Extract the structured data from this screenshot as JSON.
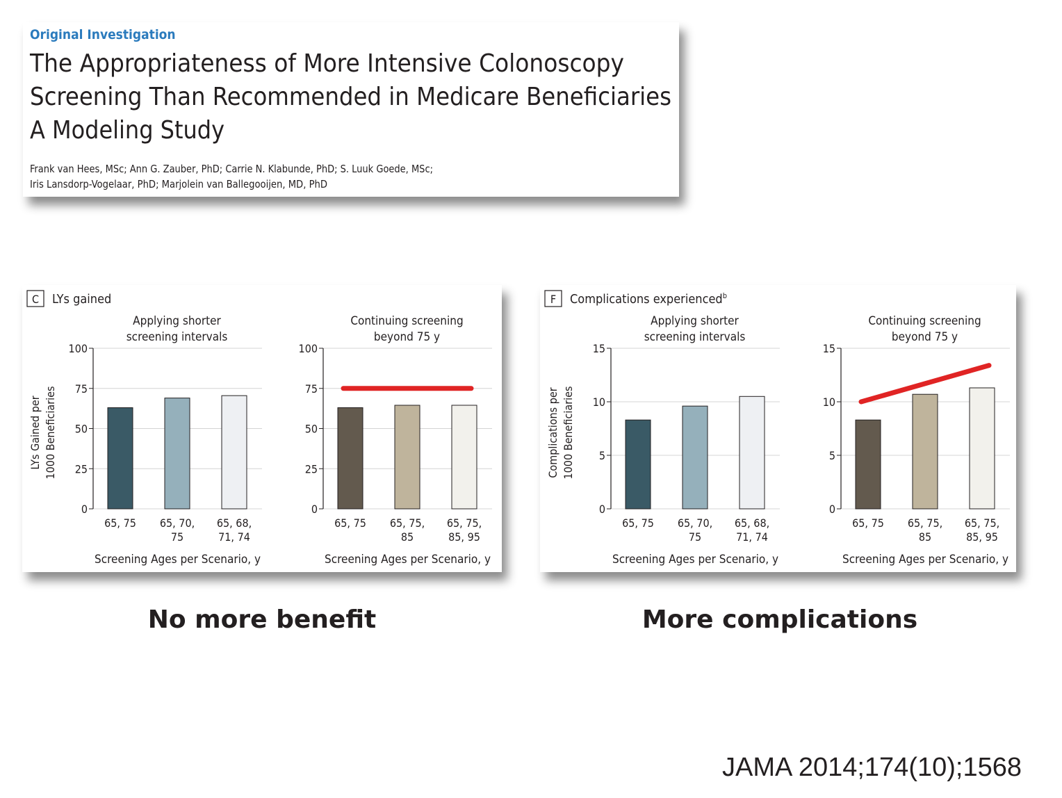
{
  "article": {
    "label": "Original Investigation",
    "title": [
      "The Appropriateness of More Intensive Colonoscopy",
      "Screening Than Recommended in Medicare Beneficiaries"
    ],
    "subtitle": "A Modeling Study",
    "authors": [
      "Frank van Hees, MSc; Ann G. Zauber, PhD; Carrie N. Klabunde, PhD; S. Luuk Goede, MSc;",
      "Iris Lansdorp-Vogelaar, PhD; Marjolein van Ballegooijen, MD, PhD"
    ]
  },
  "panels": [
    {
      "label": "C",
      "title": "LYs gained",
      "caption": "No more benefit"
    },
    {
      "label": "F",
      "title": "Complications experienced",
      "footnote_mark": "b",
      "caption": "More complications"
    }
  ],
  "chart_data": [
    {
      "type": "bar",
      "title": [
        "Applying shorter",
        "screening intervals"
      ],
      "ylabel": [
        "LYs Gained per",
        "1000 Beneficiaries"
      ],
      "xlabel": "Screening Ages per Scenario, y",
      "categories": [
        [
          "65, 75"
        ],
        [
          "65, 70,",
          "75"
        ],
        [
          "65, 68,",
          "71, 74"
        ]
      ],
      "values": [
        63,
        69,
        70.5
      ],
      "colors": [
        "#3a5a66",
        "#95b0bb",
        "#eef0f3"
      ],
      "ylim": [
        0,
        100
      ],
      "yticks": [
        0,
        25,
        50,
        75,
        100
      ],
      "grid": true
    },
    {
      "type": "bar",
      "title": [
        "Continuing screening",
        "beyond 75 y"
      ],
      "xlabel": "Screening Ages per Scenario, y",
      "categories": [
        [
          "65, 75"
        ],
        [
          "65, 75,",
          "85"
        ],
        [
          "65, 75,",
          "85, 95"
        ]
      ],
      "values": [
        63,
        64.5,
        64.5
      ],
      "colors": [
        "#635a4e",
        "#bfb49c",
        "#f2f1ec"
      ],
      "ylim": [
        0,
        100
      ],
      "yticks": [
        0,
        25,
        50,
        75,
        100
      ],
      "grid": true,
      "trend": {
        "color": "#e02424",
        "values": [
          75,
          75
        ]
      }
    },
    {
      "type": "bar",
      "title": [
        "Applying shorter",
        "screening intervals"
      ],
      "ylabel": [
        "Complications per",
        "1000 Beneficiaries"
      ],
      "xlabel": "Screening Ages per Scenario, y",
      "categories": [
        [
          "65, 75"
        ],
        [
          "65, 70,",
          "75"
        ],
        [
          "65, 68,",
          "71, 74"
        ]
      ],
      "values": [
        8.3,
        9.6,
        10.5
      ],
      "colors": [
        "#3a5a66",
        "#95b0bb",
        "#eef0f3"
      ],
      "ylim": [
        0,
        15
      ],
      "yticks": [
        0,
        5,
        10,
        15
      ],
      "grid": true
    },
    {
      "type": "bar",
      "title": [
        "Continuing screening",
        "beyond 75 y"
      ],
      "xlabel": "Screening Ages per Scenario, y",
      "categories": [
        [
          "65, 75"
        ],
        [
          "65, 75,",
          "85"
        ],
        [
          "65, 75,",
          "85, 95"
        ]
      ],
      "values": [
        8.3,
        10.7,
        11.3
      ],
      "colors": [
        "#635a4e",
        "#bfb49c",
        "#f2f1ec"
      ],
      "ylim": [
        0,
        15
      ],
      "yticks": [
        0,
        5,
        10,
        15
      ],
      "grid": true,
      "trend": {
        "color": "#e02424",
        "values": [
          10,
          13.4
        ]
      }
    }
  ],
  "citation": "JAMA 2014;174(10);1568"
}
